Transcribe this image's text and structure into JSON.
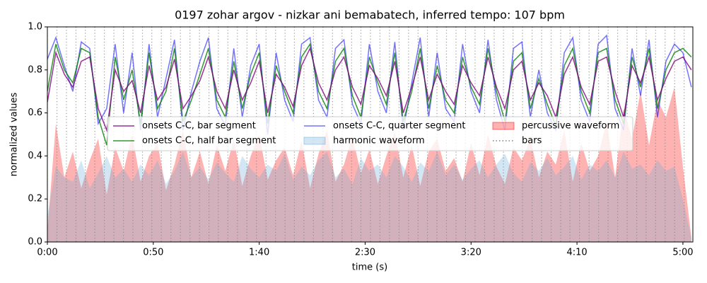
{
  "chart_data": {
    "type": "line",
    "title": "0197 zohar argov - nizkar ani bemabatech, inferred tempo: 107 bpm",
    "xlabel": "time (s)",
    "ylabel": "normalized values",
    "xlim": [
      0,
      304.7
    ],
    "ylim": [
      0,
      1
    ],
    "xticks": [
      {
        "value": 0,
        "label": "0:00"
      },
      {
        "value": 50,
        "label": "0:50"
      },
      {
        "value": 100,
        "label": "1:40"
      },
      {
        "value": 150,
        "label": "2:30"
      },
      {
        "value": 200,
        "label": "3:20"
      },
      {
        "value": 250,
        "label": "4:10"
      },
      {
        "value": 300,
        "label": "5:00"
      }
    ],
    "yticks": [
      {
        "value": 0,
        "label": "0.0"
      },
      0.2,
      0.4,
      0.6,
      0.8,
      {
        "value": 1,
        "label": "1.0"
      }
    ],
    "x": [
      0,
      4,
      8,
      12,
      16,
      20,
      24,
      28,
      32,
      36,
      40,
      44,
      48,
      52,
      56,
      60,
      64,
      68,
      72,
      76,
      80,
      84,
      88,
      92,
      96,
      100,
      104,
      108,
      112,
      116,
      120,
      124,
      128,
      132,
      136,
      140,
      144,
      148,
      152,
      156,
      160,
      164,
      168,
      172,
      176,
      180,
      184,
      188,
      192,
      196,
      200,
      204,
      208,
      212,
      216,
      220,
      224,
      228,
      232,
      236,
      240,
      244,
      248,
      252,
      256,
      260,
      264,
      268,
      272,
      276,
      280,
      284,
      288,
      292,
      296,
      300,
      304
    ],
    "series": [
      {
        "name": "onsets C-C, bar segment",
        "kind": "line",
        "color": "#800080",
        "opacity": 0.8,
        "values": [
          0.65,
          0.88,
          0.78,
          0.72,
          0.84,
          0.86,
          0.62,
          0.52,
          0.8,
          0.7,
          0.75,
          0.6,
          0.82,
          0.66,
          0.72,
          0.85,
          0.62,
          0.68,
          0.75,
          0.86,
          0.7,
          0.62,
          0.8,
          0.66,
          0.74,
          0.84,
          0.6,
          0.78,
          0.72,
          0.63,
          0.82,
          0.9,
          0.74,
          0.66,
          0.8,
          0.86,
          0.72,
          0.64,
          0.82,
          0.76,
          0.68,
          0.84,
          0.6,
          0.72,
          0.86,
          0.66,
          0.78,
          0.7,
          0.64,
          0.82,
          0.74,
          0.68,
          0.86,
          0.72,
          0.62,
          0.8,
          0.84,
          0.66,
          0.74,
          0.68,
          0.58,
          0.78,
          0.86,
          0.72,
          0.64,
          0.84,
          0.86,
          0.7,
          0.58,
          0.82,
          0.74,
          0.86,
          0.66,
          0.76,
          0.84,
          0.86,
          0.8
        ]
      },
      {
        "name": "onsets C-C, half bar segment",
        "kind": "line",
        "color": "#008000",
        "opacity": 0.8,
        "values": [
          0.7,
          0.92,
          0.8,
          0.74,
          0.9,
          0.88,
          0.58,
          0.45,
          0.86,
          0.66,
          0.8,
          0.55,
          0.88,
          0.62,
          0.7,
          0.9,
          0.56,
          0.66,
          0.78,
          0.9,
          0.66,
          0.58,
          0.84,
          0.62,
          0.78,
          0.88,
          0.55,
          0.82,
          0.7,
          0.6,
          0.86,
          0.92,
          0.7,
          0.62,
          0.84,
          0.9,
          0.68,
          0.58,
          0.86,
          0.74,
          0.64,
          0.88,
          0.56,
          0.7,
          0.9,
          0.62,
          0.82,
          0.66,
          0.6,
          0.86,
          0.72,
          0.64,
          0.9,
          0.7,
          0.56,
          0.84,
          0.88,
          0.62,
          0.76,
          0.64,
          0.54,
          0.82,
          0.9,
          0.7,
          0.6,
          0.88,
          0.9,
          0.66,
          0.55,
          0.86,
          0.72,
          0.9,
          0.62,
          0.8,
          0.88,
          0.9,
          0.86
        ]
      },
      {
        "name": "onsets C-C, quarter segment",
        "kind": "line",
        "color": "#0000ff",
        "opacity": 0.55,
        "values": [
          0.85,
          0.95,
          0.82,
          0.7,
          0.93,
          0.9,
          0.55,
          0.62,
          0.92,
          0.6,
          0.88,
          0.52,
          0.92,
          0.58,
          0.76,
          0.94,
          0.52,
          0.7,
          0.84,
          0.95,
          0.62,
          0.54,
          0.9,
          0.58,
          0.82,
          0.92,
          0.5,
          0.88,
          0.66,
          0.56,
          0.92,
          0.95,
          0.66,
          0.58,
          0.9,
          0.94,
          0.64,
          0.55,
          0.92,
          0.7,
          0.6,
          0.93,
          0.52,
          0.74,
          0.95,
          0.58,
          0.88,
          0.62,
          0.56,
          0.92,
          0.7,
          0.6,
          0.94,
          0.66,
          0.52,
          0.9,
          0.93,
          0.58,
          0.8,
          0.6,
          0.52,
          0.88,
          0.95,
          0.66,
          0.56,
          0.92,
          0.96,
          0.62,
          0.52,
          0.9,
          0.68,
          0.94,
          0.58,
          0.84,
          0.92,
          0.88,
          0.72
        ]
      },
      {
        "name": "harmonic waveform",
        "kind": "area",
        "color": "#6baed6",
        "opacity": 0.3,
        "values": [
          0.12,
          0.35,
          0.3,
          0.28,
          0.38,
          0.25,
          0.32,
          0.4,
          0.3,
          0.34,
          0.28,
          0.36,
          0.31,
          0.38,
          0.27,
          0.33,
          0.42,
          0.3,
          0.35,
          0.29,
          0.37,
          0.32,
          0.28,
          0.4,
          0.34,
          0.3,
          0.36,
          0.33,
          0.41,
          0.29,
          0.35,
          0.31,
          0.38,
          0.42,
          0.3,
          0.34,
          0.27,
          0.39,
          0.33,
          0.36,
          0.3,
          0.4,
          0.35,
          0.28,
          0.37,
          0.33,
          0.42,
          0.31,
          0.36,
          0.29,
          0.34,
          0.38,
          0.3,
          0.36,
          0.41,
          0.32,
          0.28,
          0.37,
          0.33,
          0.39,
          0.31,
          0.35,
          0.4,
          0.29,
          0.36,
          0.33,
          0.38,
          0.3,
          0.42,
          0.34,
          0.36,
          0.31,
          0.38,
          0.33,
          0.35,
          0.2,
          0.02
        ]
      },
      {
        "name": "percussive waveform",
        "kind": "area",
        "color": "#ff0000",
        "opacity": 0.3,
        "values": [
          0.05,
          0.55,
          0.3,
          0.42,
          0.25,
          0.38,
          0.48,
          0.22,
          0.44,
          0.33,
          0.5,
          0.28,
          0.4,
          0.46,
          0.24,
          0.36,
          0.52,
          0.3,
          0.42,
          0.27,
          0.45,
          0.33,
          0.48,
          0.26,
          0.4,
          0.5,
          0.29,
          0.38,
          0.44,
          0.31,
          0.47,
          0.25,
          0.41,
          0.52,
          0.28,
          0.36,
          0.49,
          0.32,
          0.43,
          0.27,
          0.4,
          0.51,
          0.3,
          0.45,
          0.26,
          0.42,
          0.48,
          0.33,
          0.39,
          0.28,
          0.46,
          0.31,
          0.5,
          0.35,
          0.27,
          0.44,
          0.38,
          0.48,
          0.3,
          0.42,
          0.36,
          0.52,
          0.28,
          0.46,
          0.33,
          0.4,
          0.56,
          0.3,
          0.62,
          0.48,
          0.7,
          0.45,
          0.66,
          0.58,
          0.72,
          0.35,
          0.02
        ]
      },
      {
        "name": "bars",
        "kind": "vlines",
        "color": "#808080",
        "opacity": 0.8,
        "x": [
          0,
          4.5,
          9.0,
          13.5,
          17.9,
          22.4,
          26.9,
          31.4,
          35.9,
          40.4,
          44.9,
          49.3,
          53.8,
          58.3,
          62.8,
          67.3,
          71.8,
          76.3,
          80.7,
          85.2,
          89.7,
          94.2,
          98.7,
          103.2,
          107.7,
          112.2,
          116.6,
          121.1,
          125.6,
          130.1,
          134.6,
          139.1,
          143.6,
          148.0,
          152.5,
          157.0,
          161.5,
          166.0,
          170.5,
          175.0,
          179.4,
          183.9,
          188.4,
          192.9,
          197.4,
          201.9,
          206.4,
          210.9,
          215.3,
          219.8,
          224.3,
          228.8,
          233.3,
          237.8,
          242.3,
          246.7,
          251.2,
          255.7,
          260.2,
          264.7,
          269.2,
          273.7,
          278.2,
          282.6,
          287.1,
          291.6,
          296.1,
          300.6
        ]
      }
    ],
    "legend_columns": 3
  }
}
